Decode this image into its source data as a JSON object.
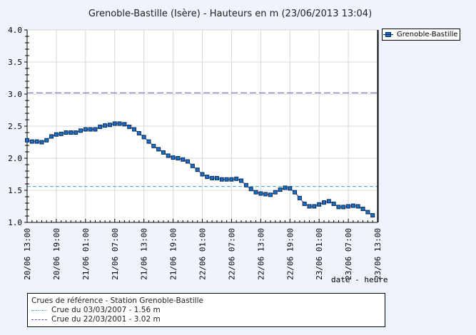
{
  "title": "Grenoble-Bastille (Isère) - Hauteurs en m (23/06/2013 13:04)",
  "series_legend": {
    "label": "Grenoble-Bastille"
  },
  "x_axis_label": "date - heure",
  "reference_box": {
    "title": "Crues de référence - Station Grenoble-Bastille",
    "items": [
      {
        "label": "Crue du 03/03/2007 - 1.56 m",
        "value": 1.56,
        "style": "dotted",
        "color": "#3aa0d8"
      },
      {
        "label": "Crue du 22/03/2001 - 3.02 m",
        "value": 3.02,
        "style": "dashed",
        "color": "#5a5ab0"
      }
    ]
  },
  "colors": {
    "marker_fill": "#1a6fc4",
    "marker_stroke": "#0a2a55",
    "line": "#3a3a8a",
    "grid": "#d8d8d8",
    "background": "#eef3fc"
  },
  "chart_data": {
    "type": "line",
    "title": "Grenoble-Bastille (Isère) - Hauteurs en m (23/06/2013 13:04)",
    "xlabel": "date - heure",
    "ylabel": "",
    "ylim": [
      1.0,
      4.0
    ],
    "yticks": [
      "1.0",
      "1.5",
      "2.0",
      "2.5",
      "3.0",
      "3.5",
      "4.0"
    ],
    "xticks": [
      "20/06 13:00",
      "20/06 19:00",
      "21/06 01:00",
      "21/06 07:00",
      "21/06 13:00",
      "21/06 19:00",
      "22/06 01:00",
      "22/06 07:00",
      "22/06 13:00",
      "22/06 19:00",
      "23/06 01:00",
      "23/06 07:00",
      "23/06 13:00"
    ],
    "grid": true,
    "legend_position": "right",
    "x_start": "20/06 13:00",
    "x_step_hours": 1,
    "series": [
      {
        "name": "Grenoble-Bastille",
        "values": [
          2.28,
          2.26,
          2.26,
          2.25,
          2.28,
          2.34,
          2.37,
          2.38,
          2.4,
          2.4,
          2.4,
          2.43,
          2.45,
          2.45,
          2.45,
          2.49,
          2.51,
          2.52,
          2.54,
          2.54,
          2.53,
          2.49,
          2.45,
          2.39,
          2.33,
          2.26,
          2.19,
          2.14,
          2.09,
          2.04,
          2.01,
          2.0,
          1.98,
          1.95,
          1.88,
          1.82,
          1.75,
          1.71,
          1.69,
          1.69,
          1.67,
          1.67,
          1.67,
          1.68,
          1.65,
          1.58,
          1.52,
          1.47,
          1.45,
          1.44,
          1.43,
          1.47,
          1.51,
          1.54,
          1.53,
          1.47,
          1.38,
          1.29,
          1.25,
          1.25,
          1.28,
          1.31,
          1.33,
          1.29,
          1.24,
          1.24,
          1.25,
          1.26,
          1.25,
          1.21,
          1.16,
          1.11
        ]
      }
    ],
    "reference_lines": [
      {
        "label": "Crue du 03/03/2007 - 1.56 m",
        "value": 1.56
      },
      {
        "label": "Crue du 22/03/2001 - 3.02 m",
        "value": 3.02
      }
    ],
    "current_time_marker": "23/06 13:00"
  }
}
